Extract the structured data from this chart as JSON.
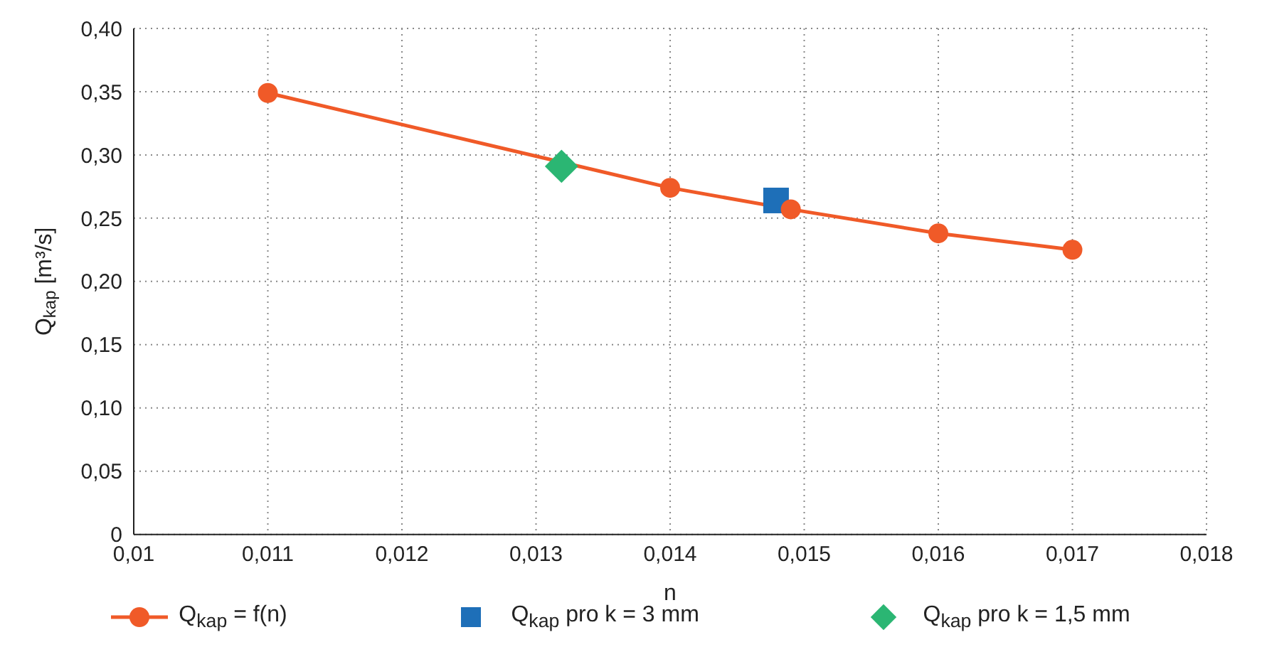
{
  "chart_data": {
    "type": "line",
    "xlabel": "n",
    "ylabel": "Q$_{kap}$ [m³/s]",
    "xlim": [
      0.01,
      0.018
    ],
    "xticks": [
      {
        "value": 0.01,
        "label": "0,01"
      },
      {
        "value": 0.011,
        "label": "0,011"
      },
      {
        "value": 0.012,
        "label": "0,012"
      },
      {
        "value": 0.013,
        "label": "0,013"
      },
      {
        "value": 0.014,
        "label": "0,014"
      },
      {
        "value": 0.015,
        "label": "0,015"
      },
      {
        "value": 0.016,
        "label": "0,016"
      },
      {
        "value": 0.017,
        "label": "0,017"
      },
      {
        "value": 0.018,
        "label": "0,018"
      }
    ],
    "ylim": [
      0,
      0.4
    ],
    "yticks": [
      0,
      {
        "value": 0.05,
        "label": "0,05"
      },
      {
        "value": 0.1,
        "label": "0,10"
      },
      {
        "value": 0.15,
        "label": "0,15"
      },
      {
        "value": 0.2,
        "label": "0,20"
      },
      {
        "value": 0.25,
        "label": "0,25"
      },
      {
        "value": 0.3,
        "label": "0,30"
      },
      {
        "value": 0.35,
        "label": "0,35"
      },
      {
        "value": 0.4,
        "label": "0,40"
      }
    ],
    "grid": true,
    "legend": "bottom",
    "line_style": "solid",
    "series": [
      {
        "name": "Q$_{kap}$ = f(n)",
        "marker": "circle",
        "color": "#f05a28",
        "x": [
          0.011,
          0.014,
          0.0149,
          0.016,
          0.017
        ],
        "values": [
          0.349,
          0.274,
          0.257,
          0.238,
          0.225
        ]
      },
      {
        "name": "Q$_{kap}$ pro k = 3 mm",
        "type": "scatter",
        "marker": "square",
        "color": "#1e6fb8",
        "x": [
          0.01479
        ],
        "values": [
          0.264
        ]
      },
      {
        "name": "Q$_{kap}$ pro k = 1,5 mm",
        "type": "scatter",
        "marker": "diamond",
        "color": "#2bb673",
        "x": [
          0.01319
        ],
        "values": [
          0.291
        ]
      }
    ]
  }
}
